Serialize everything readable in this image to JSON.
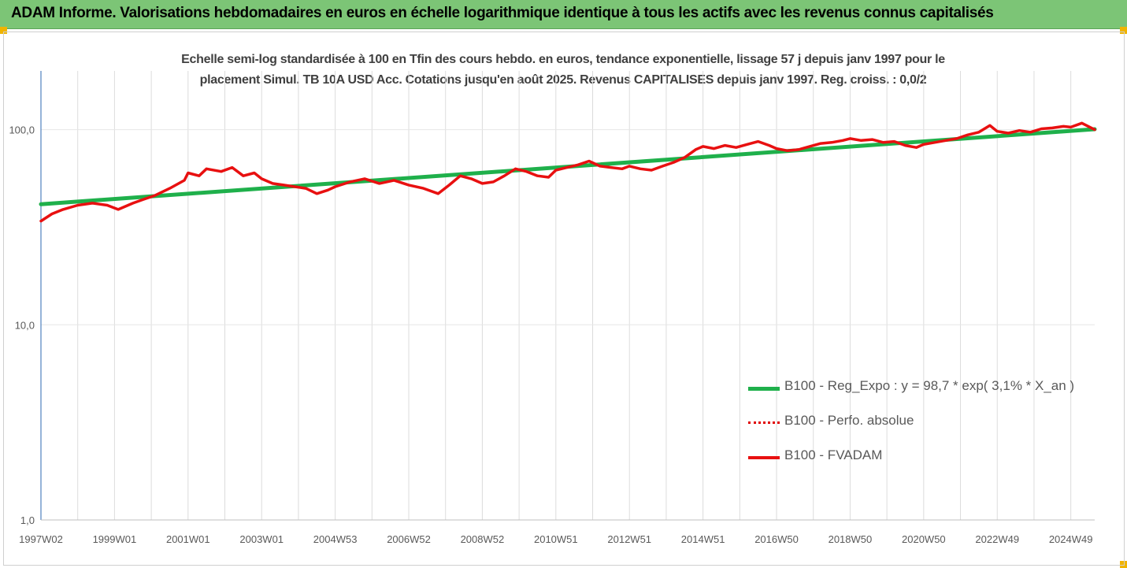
{
  "header": {
    "title": "ADAM Informe. Valorisations hebdomadaires en euros en échelle logarithmique identique à tous les actifs avec les revenus connus capitalisés"
  },
  "colors": {
    "header_bg": "#7cc576",
    "corner": "#f0b400",
    "regression": "#1fb04b",
    "perf": "#e00000",
    "fvadam": "#e81010"
  },
  "chart_data": {
    "type": "line",
    "title_lines": [
      "Echelle semi-log standardisée à 100 en Tfin des cours hebdo. en euros, tendance exponentielle, lissage 57 j depuis janv 1997 pour le",
      "placement Simul. TB 10A USD Acc. Cotations jusqu'en août 2025. Revenus CAPITALISES depuis janv 1997. Reg. croiss. : 0,0/2"
    ],
    "y_scale": "log",
    "ylim": [
      1,
      200
    ],
    "y_ticks": [
      {
        "value": 100,
        "label": "100,0"
      },
      {
        "value": 10,
        "label": "10,0"
      },
      {
        "value": 1,
        "label": "1,0"
      }
    ],
    "xlim": [
      1997.0,
      2025.65
    ],
    "x_ticks": [
      {
        "x": 1997.0,
        "label": "1997W02"
      },
      {
        "x": 1999.0,
        "label": "1999W01"
      },
      {
        "x": 2001.0,
        "label": "2001W01"
      },
      {
        "x": 2003.0,
        "label": "2003W01"
      },
      {
        "x": 2005.0,
        "label": "2004W53"
      },
      {
        "x": 2007.0,
        "label": "2006W52"
      },
      {
        "x": 2009.0,
        "label": "2008W52"
      },
      {
        "x": 2011.0,
        "label": "2010W51"
      },
      {
        "x": 2013.0,
        "label": "2012W51"
      },
      {
        "x": 2015.0,
        "label": "2014W51"
      },
      {
        "x": 2017.0,
        "label": "2016W50"
      },
      {
        "x": 2019.0,
        "label": "2018W50"
      },
      {
        "x": 2021.0,
        "label": "2020W50"
      },
      {
        "x": 2023.0,
        "label": "2022W49"
      },
      {
        "x": 2025.0,
        "label": "2024W49"
      }
    ],
    "grid": "vertical",
    "legend_position": "bottom-right",
    "series": [
      {
        "name": "B100 - Reg_Expo : y = 98,7 * exp( 3,1% *  X_an )",
        "style": "solid",
        "x": [
          1997.0,
          2025.65
        ],
        "y": [
          41.5,
          100.5
        ]
      },
      {
        "name": "B100 - Perfo. absolue",
        "style": "dotted",
        "x": [],
        "y": []
      },
      {
        "name": "B100 - FVADAM",
        "style": "solid",
        "x": [
          1997.0,
          1997.3,
          1997.6,
          1998.0,
          1998.4,
          1998.8,
          1999.1,
          1999.5,
          1999.8,
          2000.1,
          2000.5,
          2000.9,
          2001.0,
          2001.3,
          2001.5,
          2001.9,
          2002.2,
          2002.5,
          2002.8,
          2003.0,
          2003.3,
          2003.6,
          2003.9,
          2004.2,
          2004.5,
          2004.8,
          2005.0,
          2005.4,
          2005.8,
          2006.2,
          2006.6,
          2007.0,
          2007.4,
          2007.8,
          2008.1,
          2008.4,
          2008.7,
          2009.0,
          2009.3,
          2009.6,
          2009.9,
          2010.2,
          2010.5,
          2010.8,
          2011.0,
          2011.3,
          2011.6,
          2011.9,
          2012.2,
          2012.5,
          2012.8,
          2013.0,
          2013.3,
          2013.6,
          2013.9,
          2014.2,
          2014.5,
          2014.8,
          2015.0,
          2015.3,
          2015.6,
          2015.9,
          2016.2,
          2016.5,
          2016.8,
          2017.0,
          2017.3,
          2017.6,
          2017.9,
          2018.2,
          2018.5,
          2018.8,
          2019.0,
          2019.3,
          2019.6,
          2019.9,
          2020.2,
          2020.5,
          2020.8,
          2021.0,
          2021.3,
          2021.6,
          2021.9,
          2022.2,
          2022.5,
          2022.8,
          2023.0,
          2023.3,
          2023.6,
          2023.9,
          2024.2,
          2024.5,
          2024.8,
          2025.0,
          2025.3,
          2025.65
        ],
        "y": [
          34,
          37,
          39,
          41,
          42,
          41,
          39,
          42,
          44,
          46,
          50,
          55,
          60,
          58,
          63,
          61,
          64,
          58,
          60,
          56,
          53,
          52,
          51,
          50,
          47,
          49,
          51,
          54,
          56,
          53,
          55,
          52,
          50,
          47,
          52,
          58,
          56,
          53,
          54,
          58,
          63,
          61,
          58,
          57,
          62,
          64,
          66,
          69,
          65,
          64,
          63,
          65,
          63,
          62,
          65,
          68,
          72,
          79,
          82,
          80,
          83,
          81,
          84,
          87,
          83,
          80,
          78,
          79,
          82,
          85,
          86,
          88,
          90,
          88,
          89,
          86,
          87,
          83,
          81,
          84,
          86,
          88,
          90,
          94,
          97,
          105,
          98,
          96,
          99,
          97,
          101,
          102,
          104,
          103,
          108,
          100
        ]
      }
    ]
  }
}
